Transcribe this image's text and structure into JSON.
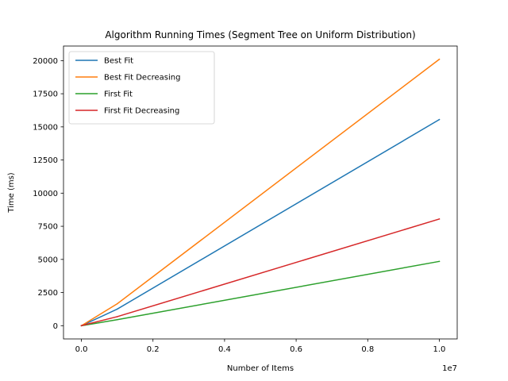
{
  "chart_data": {
    "type": "line",
    "title": "Algorithm Running Times (Segment Tree on Uniform Distribution)",
    "xlabel": "Number of Items",
    "ylabel": "Time (ms)",
    "x_offset_text": "1e7",
    "x_scale": 10000000,
    "xlim": [
      -500000,
      10500000
    ],
    "ylim": [
      -1000,
      21100
    ],
    "x_ticks": [
      0,
      2000000,
      4000000,
      6000000,
      8000000,
      10000000
    ],
    "x_tick_labels": [
      "0.0",
      "0.2",
      "0.4",
      "0.6",
      "0.8",
      "1.0"
    ],
    "y_ticks": [
      0,
      2500,
      5000,
      7500,
      10000,
      12500,
      15000,
      17500,
      20000
    ],
    "y_tick_labels": [
      "0",
      "2500",
      "5000",
      "7500",
      "10000",
      "12500",
      "15000",
      "17500",
      "20000"
    ],
    "x": [
      0,
      10000,
      100000,
      1000000,
      10000000
    ],
    "series": [
      {
        "name": "Best Fit",
        "color": "#1f77b4",
        "values": [
          0,
          12,
          120,
          1250,
          15550
        ]
      },
      {
        "name": "Best Fit Decreasing",
        "color": "#ff7f0e",
        "values": [
          0,
          16,
          160,
          1650,
          20100
        ]
      },
      {
        "name": "First Fit",
        "color": "#2ca02c",
        "values": [
          0,
          4,
          40,
          450,
          4850
        ]
      },
      {
        "name": "First Fit Decreasing",
        "color": "#d62728",
        "values": [
          0,
          7,
          70,
          680,
          8050
        ]
      }
    ],
    "grid": false,
    "legend_position": "upper-left"
  }
}
